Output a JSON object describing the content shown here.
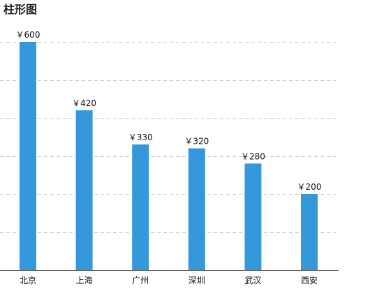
{
  "chart_data": {
    "type": "bar",
    "title": "柱形图",
    "categories": [
      "北京",
      "上海",
      "广州",
      "深圳",
      "武汉",
      "西安"
    ],
    "values": [
      600,
      420,
      330,
      320,
      280,
      200
    ],
    "value_labels": [
      "￥600",
      "￥420",
      "￥330",
      "￥320",
      "￥280",
      "￥200"
    ],
    "xlabel": "",
    "ylabel": "",
    "ylim": [
      0,
      600
    ],
    "y_tick_labels_visible": false,
    "grid": true,
    "bar_color": "#3498db"
  }
}
